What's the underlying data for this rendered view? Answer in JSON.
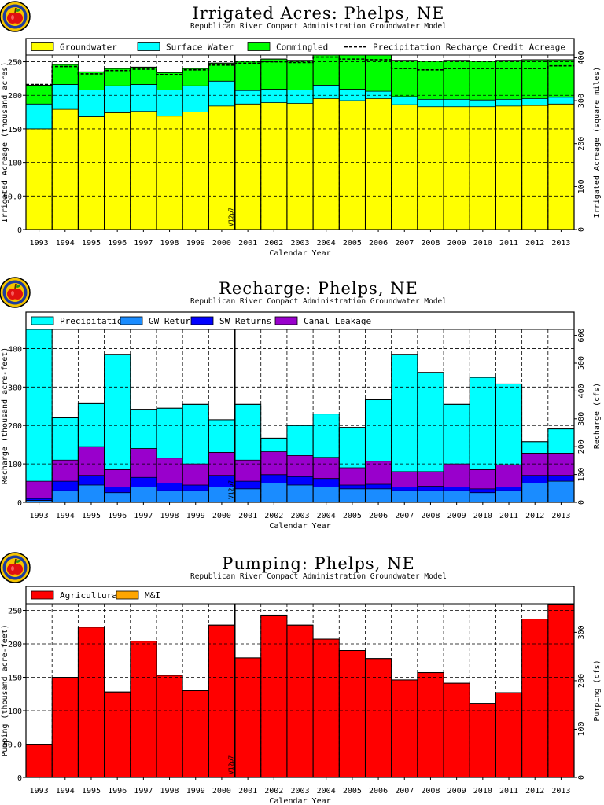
{
  "model_version": "V12p7",
  "subtitle": "Republican River Compact Administration Groundwater Model",
  "xlabel": "Calendar Year",
  "chart_data": [
    {
      "type": "bar",
      "stacked": true,
      "title": "Irrigated Acres: Phelps, NE",
      "subtitle": "Republican River Compact Administration Groundwater Model",
      "xlabel": "Calendar Year",
      "ylabel": "Irrigated Acreage (thousand acres)",
      "ylabel_right": "Irrigated Acreage (square miles)",
      "ylim": [
        0,
        260
      ],
      "yticks": [
        0,
        50,
        100,
        150,
        200,
        250
      ],
      "ytick_labels": [
        "0",
        "50.0",
        "100",
        "150",
        "200",
        "250"
      ],
      "right_ylim": [
        0,
        406.25
      ],
      "right_yticks": [
        0,
        100,
        200,
        300,
        400
      ],
      "grid": true,
      "legend": "top",
      "categories": [
        "1993",
        "1994",
        "1995",
        "1996",
        "1997",
        "1998",
        "1999",
        "2000",
        "2001",
        "2002",
        "2003",
        "2004",
        "2005",
        "2006",
        "2007",
        "2008",
        "2009",
        "2010",
        "2011",
        "2012",
        "2013"
      ],
      "series": [
        {
          "name": "Groundwater",
          "color": "#ffff00",
          "values": [
            150,
            179,
            168,
            174,
            176,
            169,
            175,
            184,
            187,
            189,
            188,
            195,
            192,
            195,
            186,
            183,
            183,
            183,
            184,
            185,
            187
          ]
        },
        {
          "name": "Surface Water",
          "color": "#00ffff",
          "values": [
            37,
            37,
            40,
            40,
            40,
            39,
            39,
            37,
            20,
            20,
            20,
            20,
            17,
            11,
            12,
            11,
            11,
            10,
            10,
            10,
            10
          ]
        },
        {
          "name": "Commingled",
          "color": "#00ff00",
          "values": [
            28,
            30,
            27,
            26,
            26,
            26,
            26,
            27,
            44,
            45,
            44,
            48,
            52,
            54,
            54,
            57,
            58,
            58,
            58,
            58,
            56
          ]
        }
      ],
      "line_series": [
        {
          "name": "Precipitation Recharge Credit Acreage",
          "color": "#000000",
          "dashed": true,
          "values": [
            216,
            243,
            232,
            237,
            239,
            231,
            238,
            245,
            248,
            250,
            249,
            257,
            254,
            253,
            240,
            238,
            240,
            240,
            240,
            240,
            244
          ]
        }
      ],
      "annotation": {
        "label": "V12p7",
        "at_category": "2000"
      }
    },
    {
      "type": "bar",
      "stacked": true,
      "title": "Recharge: Phelps, NE",
      "subtitle": "Republican River Compact Administration Groundwater Model",
      "xlabel": "Calendar Year",
      "ylabel": "Recharge (thousand acre-feet)",
      "ylabel_right": "Recharge (cfs)",
      "ylim": [
        0,
        450
      ],
      "yticks": [
        0,
        100,
        200,
        300,
        400
      ],
      "ytick_labels": [
        "0",
        "100",
        "200",
        "300",
        "400"
      ],
      "right_ylim": [
        0,
        621.5
      ],
      "right_yticks": [
        0,
        100,
        200,
        300,
        400,
        500,
        600
      ],
      "grid": true,
      "legend": "top",
      "categories": [
        "1993",
        "1994",
        "1995",
        "1996",
        "1997",
        "1998",
        "1999",
        "2000",
        "2001",
        "2002",
        "2003",
        "2004",
        "2005",
        "2006",
        "2007",
        "2008",
        "2009",
        "2010",
        "2011",
        "2012",
        "2013"
      ],
      "series": [
        {
          "name": "GW Returns",
          "color": "#1a8cff",
          "values": [
            5,
            30,
            45,
            25,
            40,
            30,
            30,
            40,
            35,
            50,
            45,
            40,
            35,
            35,
            30,
            30,
            30,
            25,
            30,
            50,
            55
          ]
        },
        {
          "name": "SW Returns",
          "color": "#0000ff",
          "values": [
            5,
            25,
            25,
            15,
            25,
            20,
            15,
            30,
            20,
            22,
            22,
            22,
            10,
            12,
            10,
            12,
            10,
            10,
            10,
            20,
            15
          ]
        },
        {
          "name": "Canal Leakage",
          "color": "#9900cc",
          "values": [
            45,
            55,
            75,
            45,
            75,
            65,
            55,
            60,
            55,
            60,
            55,
            55,
            45,
            60,
            40,
            38,
            60,
            50,
            58,
            58,
            58
          ]
        },
        {
          "name": "Precipitation",
          "color": "#00ffff",
          "values": [
            395,
            110,
            112,
            300,
            102,
            130,
            155,
            85,
            145,
            35,
            78,
            113,
            105,
            160,
            305,
            258,
            155,
            240,
            210,
            30,
            63
          ]
        }
      ],
      "annotation": {
        "label": "V12p7",
        "at_category": "2000"
      }
    },
    {
      "type": "bar",
      "stacked": true,
      "title": "Pumping: Phelps, NE",
      "subtitle": "Republican River Compact Administration Groundwater Model",
      "xlabel": "Calendar Year",
      "ylabel": "Pumping (thousand acre-feet)",
      "ylabel_right": "Pumping (cfs)",
      "ylim": [
        0,
        260
      ],
      "yticks": [
        0,
        50,
        100,
        150,
        200,
        250
      ],
      "ytick_labels": [
        "0",
        "50.0",
        "100",
        "150",
        "200",
        "250"
      ],
      "right_ylim": [
        0,
        359.1
      ],
      "right_yticks": [
        0,
        100,
        200,
        300
      ],
      "grid": true,
      "legend": "top",
      "categories": [
        "1993",
        "1994",
        "1995",
        "1996",
        "1997",
        "1998",
        "1999",
        "2000",
        "2001",
        "2002",
        "2003",
        "2004",
        "2005",
        "2006",
        "2007",
        "2008",
        "2009",
        "2010",
        "2011",
        "2012",
        "2013"
      ],
      "series": [
        {
          "name": "Agricultural",
          "color": "#ff0000",
          "values": [
            49,
            150,
            225,
            128,
            204,
            153,
            130,
            228,
            179,
            243,
            228,
            207,
            190,
            178,
            146,
            157,
            141,
            111,
            127,
            237,
            259
          ]
        },
        {
          "name": "M&I",
          "color": "#ffa500",
          "values": [
            0,
            0,
            0,
            0,
            0,
            0,
            0,
            0,
            0,
            0,
            0,
            0,
            0,
            0,
            0,
            0,
            0,
            0,
            0,
            0,
            0
          ]
        }
      ],
      "annotation": {
        "label": "V12p7",
        "at_category": "2000"
      }
    }
  ]
}
